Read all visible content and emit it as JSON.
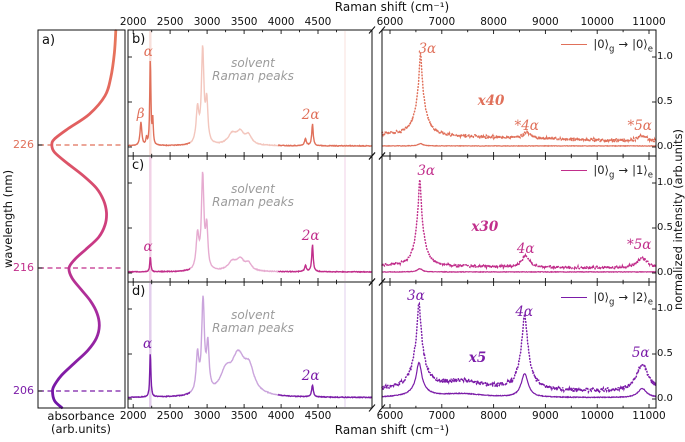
{
  "figure": {
    "panel_letters": [
      "a)",
      "b)",
      "c)",
      "d)"
    ]
  },
  "chart_data": {
    "type": "line",
    "shared_x": {
      "label": "Raman shift (cm⁻¹)",
      "broken_axis": true,
      "left_segment": {
        "range": [
          1930,
          5230
        ],
        "ticks": [
          2000,
          2500,
          3000,
          3500,
          4000,
          4500
        ]
      },
      "right_segment": {
        "range": [
          5846,
          11135
        ],
        "ticks": [
          6000,
          7000,
          8000,
          9000,
          10000,
          11000
        ]
      }
    },
    "intensity_axis": {
      "label": "normalized intensity (arb.units)",
      "values": [
        1.0,
        0.5,
        0.0
      ],
      "labels": [
        "1.0",
        "0.5",
        "0.0"
      ],
      "range": [
        0,
        1.3
      ]
    },
    "absorbance_panel": {
      "label": "a)",
      "ylabel": "wavelength (nm)",
      "xlabel_line1": "absorbance",
      "xlabel_line2": "(arb.units)",
      "yticks": [
        226,
        216,
        206
      ],
      "ytick_colors": [
        "#E0705A",
        "#C12E8B",
        "#7B1CA8"
      ],
      "dashed_lines_nm": [
        226,
        216,
        206
      ],
      "gradient": [
        [
          0,
          "#E8795B"
        ],
        [
          30,
          "#E05A60"
        ],
        [
          55,
          "#CC3A82"
        ],
        [
          75,
          "#A62BA0"
        ],
        [
          100,
          "#6C13A8"
        ]
      ],
      "curve_wavelength_absorbance": [
        [
          235.3,
          0.03
        ],
        [
          233.5,
          0.05
        ],
        [
          231.5,
          0.1
        ],
        [
          230.0,
          0.18
        ],
        [
          228.5,
          0.4
        ],
        [
          227.3,
          0.7
        ],
        [
          226.5,
          0.88
        ],
        [
          226.0,
          0.92
        ],
        [
          225.4,
          0.88
        ],
        [
          224.5,
          0.7
        ],
        [
          223.5,
          0.48
        ],
        [
          222.5,
          0.3
        ],
        [
          221.5,
          0.2
        ],
        [
          220.5,
          0.16
        ],
        [
          219.5,
          0.18
        ],
        [
          218.5,
          0.27
        ],
        [
          217.5,
          0.45
        ],
        [
          216.7,
          0.6
        ],
        [
          216.0,
          0.68
        ],
        [
          215.2,
          0.64
        ],
        [
          214.3,
          0.52
        ],
        [
          213.3,
          0.38
        ],
        [
          212.3,
          0.29
        ],
        [
          211.3,
          0.26
        ],
        [
          210.3,
          0.3
        ],
        [
          209.3,
          0.42
        ],
        [
          208.3,
          0.6
        ],
        [
          207.3,
          0.78
        ],
        [
          206.5,
          0.88
        ],
        [
          206.0,
          0.91
        ],
        [
          205.2,
          0.88
        ],
        [
          204.65,
          0.78
        ]
      ]
    },
    "raman_panels": [
      {
        "key": "b",
        "label": "b)",
        "color": "#E0705A",
        "legend": {
          "from_ket": "|0⟩",
          "from_sub": "g",
          "arrow": "→",
          "to_ket": "|0⟩",
          "to_sub": "e"
        },
        "solvent_fade_range": [
          2770,
          3960
        ],
        "guides": [
          {
            "x": 2232,
            "width": 2.5,
            "opacity": 0.22
          },
          {
            "x": 4865,
            "width": 1.5,
            "opacity": 0.14
          }
        ],
        "left_trace": {
          "style": "solid",
          "baseline": 0.012,
          "noise": 0.004,
          "peaks": [
            [
              2105,
              0.26,
              14
            ],
            [
              2180,
              0.08,
              8
            ],
            [
              2232,
              0.97,
              9
            ],
            [
              2265,
              0.28,
              8
            ],
            [
              2870,
              0.38,
              22
            ],
            [
              2940,
              1.04,
              20
            ],
            [
              2995,
              0.45,
              18
            ],
            [
              3340,
              0.12,
              70
            ],
            [
              3450,
              0.13,
              60
            ],
            [
              3560,
              0.1,
              50
            ],
            [
              4330,
              0.08,
              14
            ],
            [
              4425,
              0.24,
              12
            ]
          ]
        },
        "right_trace_original": {
          "style": "solid",
          "baseline": 0.012,
          "noise": 0.003,
          "peaks": [
            [
              6590,
              0.025,
              60
            ]
          ]
        },
        "right_trace_magnified": {
          "style": "dotted",
          "baseline": [
            0.14,
            0.06
          ],
          "noise": 0.018,
          "peaks": [
            [
              6590,
              0.5,
              110
            ],
            [
              6590,
              0.4,
              30
            ],
            [
              8640,
              0.06,
              90
            ],
            [
              10870,
              0.06,
              100
            ]
          ]
        },
        "annotations": [
          {
            "x": 2100,
            "y": 0.36,
            "text": "β",
            "cls": "math",
            "name": "peak-label-beta"
          },
          {
            "x": 2205,
            "y": 1.05,
            "text": "α",
            "cls": "math",
            "name": "peak-label-alpha"
          },
          {
            "x": 3620,
            "y": 0.85,
            "text": "solvent\nRaman peaks",
            "cls": "solvent",
            "name": "solvent-note"
          },
          {
            "x": 4400,
            "y": 0.35,
            "text": "2α",
            "cls": "math",
            "name": "peak-label-2alpha"
          },
          {
            "x": 6720,
            "y": 1.08,
            "text": "3α",
            "cls": "math",
            "name": "peak-label-3alpha"
          },
          {
            "x": 7950,
            "y": 0.5,
            "text": "x40",
            "cls": "mag",
            "name": "magnification-label"
          },
          {
            "x": 8640,
            "y": 0.22,
            "text": "*4α",
            "cls": "math",
            "name": "peak-label-4alpha"
          },
          {
            "x": 10820,
            "y": 0.22,
            "text": "*5α",
            "cls": "math",
            "name": "peak-label-5alpha"
          }
        ]
      },
      {
        "key": "c",
        "label": "c)",
        "color": "#C12E8B",
        "legend": {
          "from_ket": "|0⟩",
          "from_sub": "g",
          "arrow": "→",
          "to_ket": "|1⟩",
          "to_sub": "e"
        },
        "solvent_fade_range": [
          2770,
          3960
        ],
        "guides": [
          {
            "x": 2232,
            "width": 2.5,
            "opacity": 0.22
          },
          {
            "x": 4865,
            "width": 1.5,
            "opacity": 0.14
          }
        ],
        "left_trace": {
          "style": "solid",
          "baseline": 0.012,
          "noise": 0.004,
          "peaks": [
            [
              2232,
              0.17,
              9
            ],
            [
              2870,
              0.38,
              22
            ],
            [
              2940,
              1.04,
              20
            ],
            [
              2995,
              0.45,
              18
            ],
            [
              3340,
              0.1,
              70
            ],
            [
              3450,
              0.12,
              60
            ],
            [
              3560,
              0.08,
              50
            ],
            [
              4330,
              0.07,
              14
            ],
            [
              4425,
              0.3,
              12
            ]
          ]
        },
        "right_trace_original": {
          "style": "solid",
          "baseline": 0.012,
          "noise": 0.003,
          "peaks": [
            [
              6575,
              0.035,
              60
            ]
          ]
        },
        "right_trace_magnified": {
          "style": "dotted",
          "baseline": [
            0.08,
            0.05
          ],
          "noise": 0.015,
          "peaks": [
            [
              6575,
              0.55,
              95
            ],
            [
              6575,
              0.42,
              28
            ],
            [
              8615,
              0.12,
              90
            ],
            [
              10870,
              0.11,
              130
            ]
          ]
        },
        "annotations": [
          {
            "x": 2200,
            "y": 0.28,
            "text": "α",
            "cls": "math",
            "name": "peak-label-alpha"
          },
          {
            "x": 3620,
            "y": 0.85,
            "text": "solvent\nRaman peaks",
            "cls": "solvent",
            "name": "solvent-note"
          },
          {
            "x": 4400,
            "y": 0.4,
            "text": "2α",
            "cls": "math",
            "name": "peak-label-2alpha"
          },
          {
            "x": 6700,
            "y": 1.12,
            "text": "3α",
            "cls": "math",
            "name": "peak-label-3alpha"
          },
          {
            "x": 7830,
            "y": 0.5,
            "text": "x30",
            "cls": "mag",
            "name": "magnification-label"
          },
          {
            "x": 8620,
            "y": 0.26,
            "text": "4α",
            "cls": "math",
            "name": "peak-label-4alpha"
          },
          {
            "x": 10810,
            "y": 0.3,
            "text": "*5α",
            "cls": "math",
            "name": "peak-label-5alpha"
          }
        ]
      },
      {
        "key": "d",
        "label": "d)",
        "color": "#7B1CA8",
        "legend": {
          "from_ket": "|0⟩",
          "from_sub": "g",
          "arrow": "→",
          "to_ket": "|2⟩",
          "to_sub": "e"
        },
        "solvent_fade_range": [
          2770,
          3960
        ],
        "guides": [
          {
            "x": 2232,
            "width": 2.5,
            "opacity": 0.22
          },
          {
            "x": 4865,
            "width": 1.5,
            "opacity": 0.14
          }
        ],
        "left_trace": {
          "style": "solid",
          "baseline": 0.015,
          "noise": 0.004,
          "peaks": [
            [
              2232,
              0.5,
              9
            ],
            [
              2870,
              0.42,
              22
            ],
            [
              2945,
              1.02,
              22
            ],
            [
              3010,
              0.5,
              20
            ],
            [
              3250,
              0.22,
              90
            ],
            [
              3420,
              0.42,
              110
            ],
            [
              3570,
              0.25,
              80
            ],
            [
              4425,
              0.13,
              14
            ]
          ]
        },
        "right_trace_original": {
          "style": "solid",
          "baseline": 0.015,
          "noise": 0.004,
          "peaks": [
            [
              6560,
              0.3,
              60
            ],
            [
              6560,
              0.08,
              200
            ],
            [
              7400,
              0.04,
              500
            ],
            [
              8600,
              0.26,
              80
            ],
            [
              10870,
              0.1,
              100
            ]
          ]
        },
        "right_trace_magnified": {
          "style": "dotted",
          "baseline": [
            0.1,
            0.08
          ],
          "noise": 0.022,
          "peaks": [
            [
              6560,
              0.5,
              130
            ],
            [
              6560,
              0.45,
              36
            ],
            [
              7400,
              0.1,
              500
            ],
            [
              8600,
              0.55,
              110
            ],
            [
              8600,
              0.28,
              40
            ],
            [
              10870,
              0.3,
              140
            ]
          ]
        },
        "annotations": [
          {
            "x": 2195,
            "y": 0.6,
            "text": "α",
            "cls": "math",
            "name": "peak-label-alpha"
          },
          {
            "x": 3620,
            "y": 0.85,
            "text": "solvent\nRaman peaks",
            "cls": "solvent",
            "name": "solvent-note"
          },
          {
            "x": 4400,
            "y": 0.25,
            "text": "2α",
            "cls": "math",
            "name": "peak-label-2alpha"
          },
          {
            "x": 6500,
            "y": 1.13,
            "text": "3α",
            "cls": "math",
            "name": "peak-label-3alpha"
          },
          {
            "x": 7690,
            "y": 0.45,
            "text": "x5",
            "cls": "mag",
            "name": "magnification-label"
          },
          {
            "x": 8590,
            "y": 0.96,
            "text": "4α",
            "cls": "math",
            "name": "peak-label-4alpha"
          },
          {
            "x": 10840,
            "y": 0.5,
            "text": "5α",
            "cls": "math",
            "name": "peak-label-5alpha"
          }
        ]
      }
    ]
  }
}
